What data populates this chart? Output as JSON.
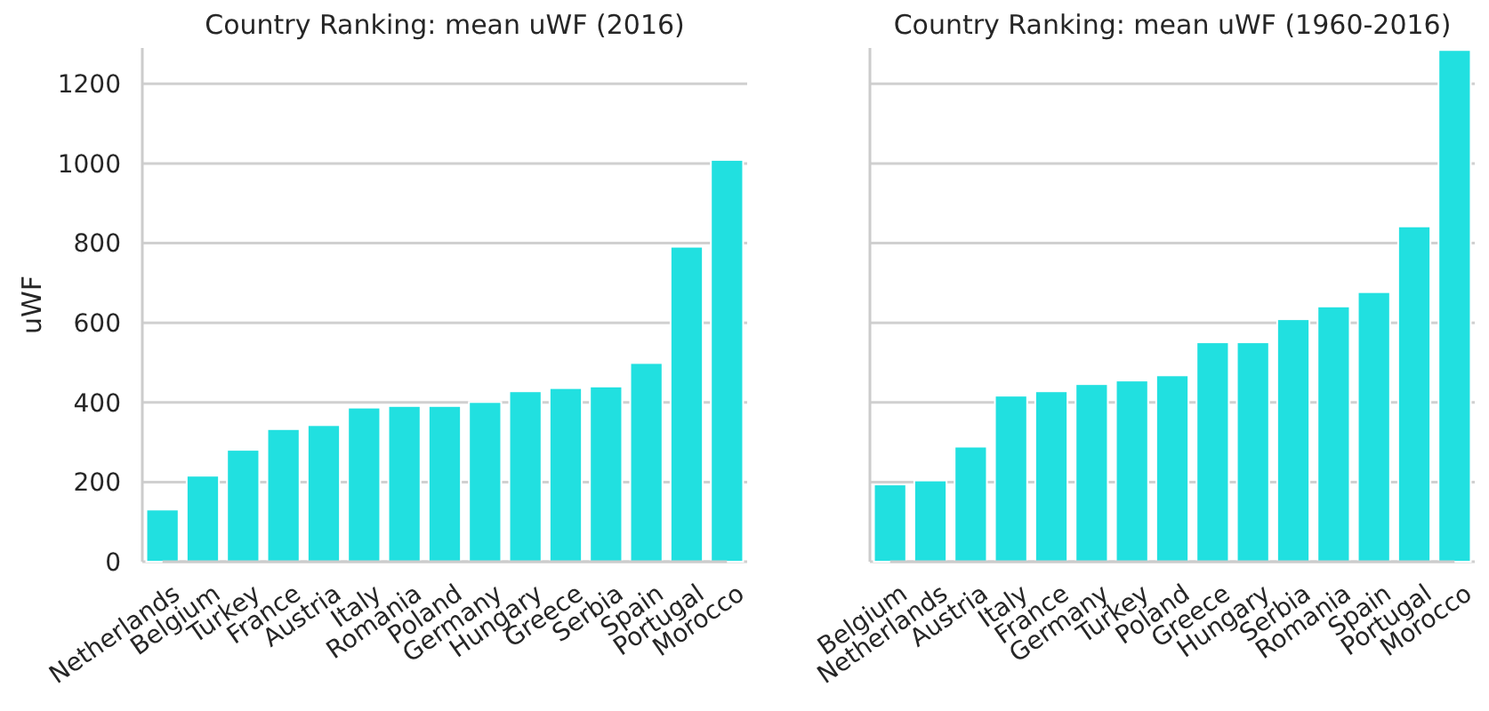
{
  "chart_data": [
    {
      "type": "bar",
      "title": "Country Ranking: mean uWF (2016)",
      "ylabel": "uWF",
      "categories": [
        "Netherlands",
        "Belgium",
        "Turkey",
        "France",
        "Austria",
        "Italy",
        "Romania",
        "Poland",
        "Germany",
        "Hungary",
        "Greece",
        "Serbia",
        "Spain",
        "Portugal",
        "Morocco"
      ],
      "values": [
        131,
        216,
        281,
        333,
        343,
        387,
        391,
        391,
        401,
        428,
        436,
        440,
        499,
        791,
        1009
      ],
      "color": "#21e0e0",
      "ylim": [
        0,
        1290
      ],
      "yticks": [
        0,
        200,
        400,
        600,
        800,
        1000,
        1200
      ],
      "grid": "y"
    },
    {
      "type": "bar",
      "title": "Country Ranking: mean uWF (1960-2016)",
      "categories": [
        "Belgium",
        "Netherlands",
        "Austria",
        "Italy",
        "France",
        "Germany",
        "Turkey",
        "Poland",
        "Greece",
        "Hungary",
        "Serbia",
        "Romania",
        "Spain",
        "Portugal",
        "Morocco"
      ],
      "values": [
        194,
        204,
        289,
        417,
        428,
        446,
        455,
        468,
        551,
        551,
        609,
        641,
        677,
        842,
        1285
      ],
      "color": "#21e0e0",
      "ylim": [
        0,
        1290
      ],
      "yticks": [
        0,
        200,
        400,
        600,
        800,
        1000,
        1200
      ],
      "grid": "y",
      "tick_labels": "x"
    }
  ]
}
